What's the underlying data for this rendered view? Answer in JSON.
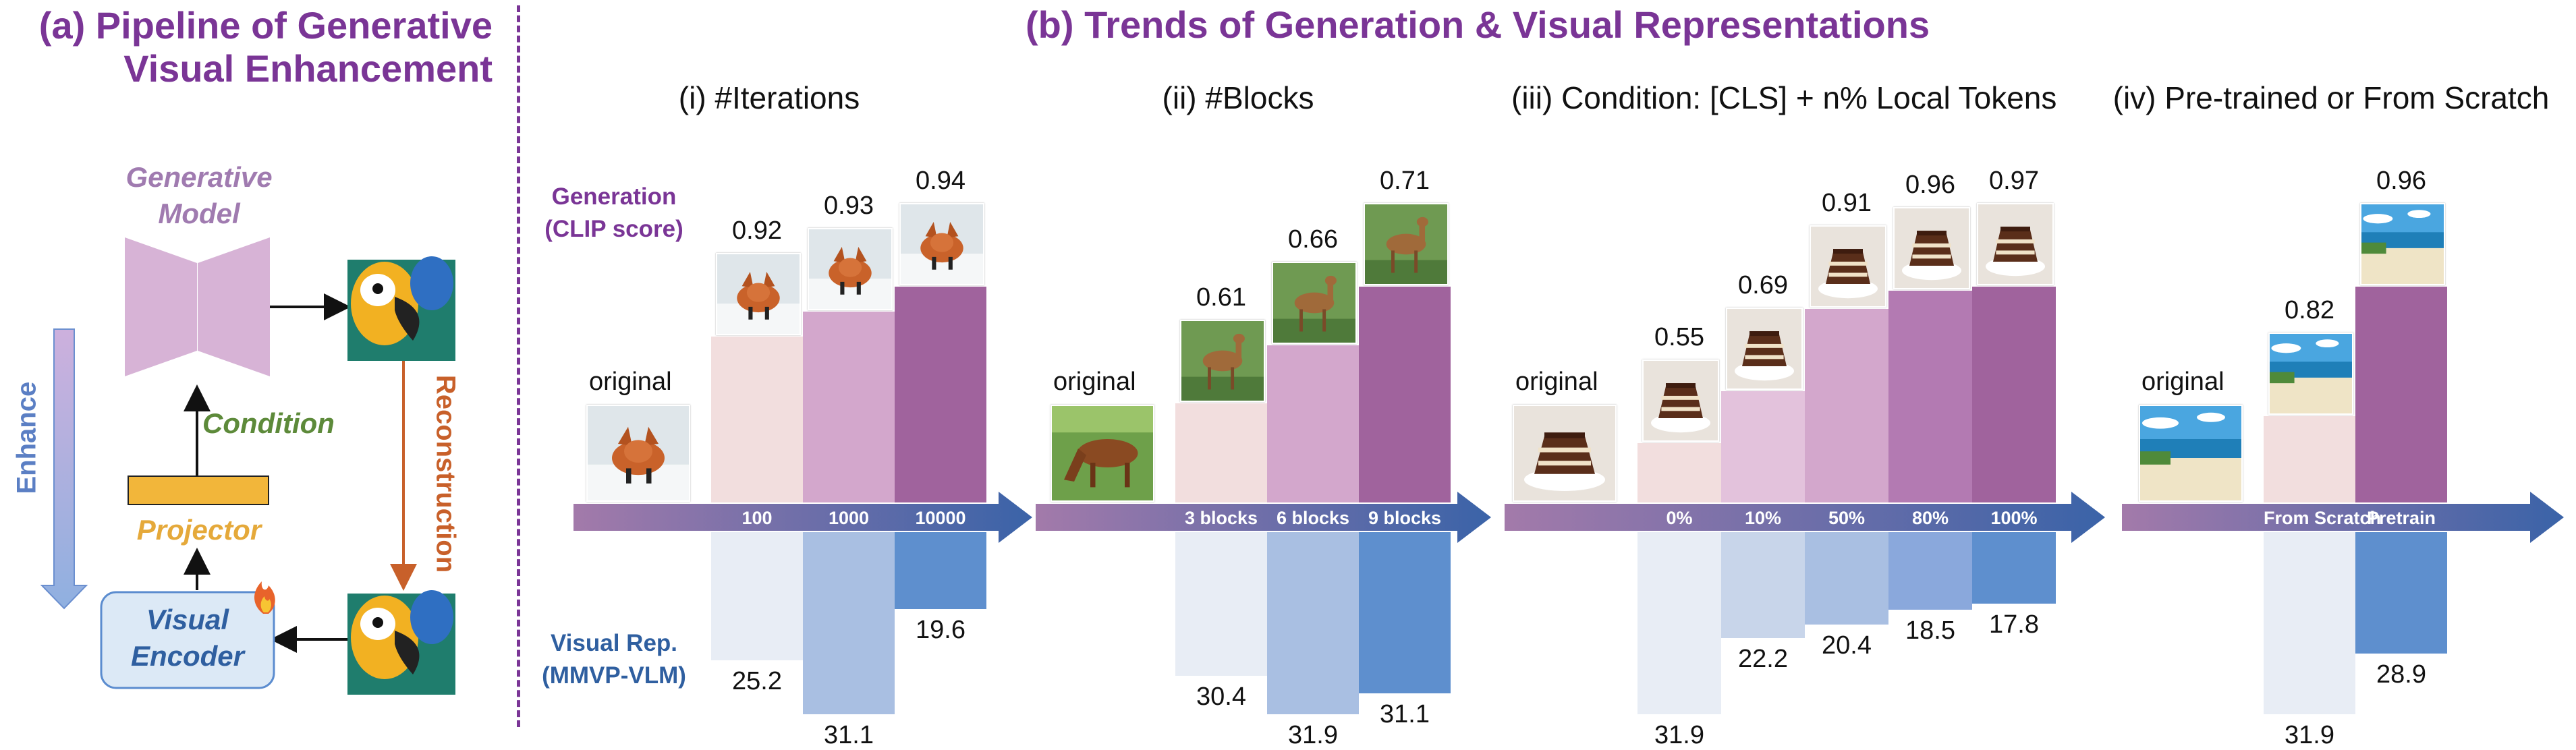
{
  "left_panel": {
    "title": "(a) Pipeline of Generative Visual Enhancement",
    "generative_model": "Generative Model",
    "condition": "Condition",
    "projector": "Projector",
    "visual_encoder": "Visual Encoder",
    "reconstruction": "Reconstruction",
    "enhance": "Enhance",
    "fire_icon": "fire-icon",
    "colors": {
      "model": "#d7b3d6",
      "projector": "#f2b63a",
      "encoder_fill": "#dce9f6",
      "encoder_border": "#5b8ccf",
      "condition": "#5d8a3a",
      "reconstruction": "#c8602a",
      "enhance_arrow": "#7ea3d9"
    }
  },
  "right_panel": {
    "title": "(b) Trends of Generation & Visual Representations",
    "generation_label": "Generation (CLIP score)",
    "visual_label": "Visual Rep. (MMVP-VLM)",
    "original_label": "original",
    "colors": {
      "gen_bars": [
        "#f2dede",
        "#e3c2dc",
        "#d3a7cc",
        "#b37ab2",
        "#a0639d"
      ],
      "vis_bars": [
        "#e8edf5",
        "#c8d5ea",
        "#a9bfe2",
        "#8aa8dc",
        "#5e8fce"
      ],
      "axis_start": "#a37aaa",
      "axis_end": "#3a63a8"
    }
  },
  "chart_data": [
    {
      "type": "bar",
      "title": "(i) #Iterations",
      "categories": [
        "original",
        "100",
        "1000",
        "10000"
      ],
      "series": [
        {
          "name": "Generation (CLIP score)",
          "values": [
            null,
            0.92,
            0.93,
            0.94
          ]
        },
        {
          "name": "Visual Rep. (MMVP-VLM)",
          "values": [
            null,
            25.2,
            31.1,
            19.6
          ]
        }
      ],
      "thumbnails": [
        "fox",
        "fox",
        "fox",
        "fox"
      ]
    },
    {
      "type": "bar",
      "title": "(ii) #Blocks",
      "categories": [
        "original",
        "3 blocks",
        "6 blocks",
        "9 blocks"
      ],
      "series": [
        {
          "name": "Generation (CLIP score)",
          "values": [
            null,
            0.61,
            0.66,
            0.71
          ]
        },
        {
          "name": "Visual Rep. (MMVP-VLM)",
          "values": [
            null,
            30.4,
            31.9,
            31.1
          ]
        }
      ],
      "thumbnails": [
        "horse",
        "deer",
        "deer",
        "deer"
      ]
    },
    {
      "type": "bar",
      "title": "(iii) Condition: [CLS] + n% Local Tokens",
      "categories": [
        "original",
        "0%",
        "10%",
        "50%",
        "80%",
        "100%"
      ],
      "series": [
        {
          "name": "Generation (CLIP score)",
          "values": [
            null,
            0.55,
            0.69,
            0.91,
            0.96,
            0.97
          ]
        },
        {
          "name": "Visual Rep. (MMVP-VLM)",
          "values": [
            null,
            31.9,
            22.2,
            20.4,
            18.5,
            17.8
          ]
        }
      ],
      "thumbnails": [
        "cake",
        "cake",
        "cake",
        "cake",
        "cake",
        "cake"
      ]
    },
    {
      "type": "bar",
      "title": "(iv) Pre-trained or From Scratch",
      "categories": [
        "original",
        "From Scratch",
        "Pretrain"
      ],
      "series": [
        {
          "name": "Generation (CLIP score)",
          "values": [
            null,
            0.82,
            0.96
          ]
        },
        {
          "name": "Visual Rep. (MMVP-VLM)",
          "values": [
            null,
            31.9,
            28.9
          ]
        }
      ],
      "thumbnails": [
        "beach",
        "beach",
        "beach"
      ]
    }
  ]
}
